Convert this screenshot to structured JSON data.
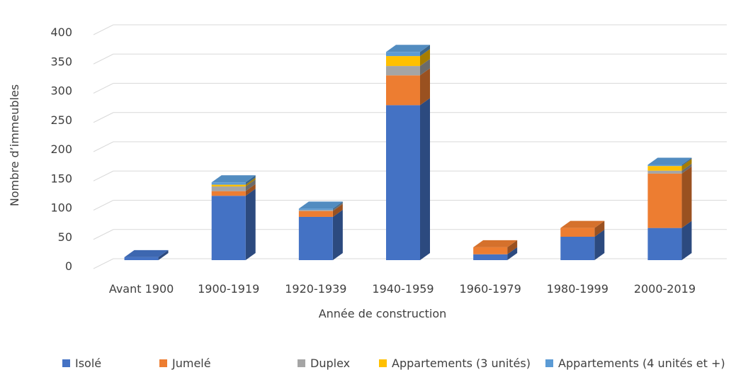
{
  "chart_data": {
    "type": "bar3d-stacked",
    "x_label": "Année de construction",
    "y_label": "Nombre d’immeubles",
    "categories": [
      "Avant 1900",
      "1900-1919",
      "1920-1939",
      "1940-1959",
      "1960-1979",
      "1980-1999",
      "2000-2019"
    ],
    "series": [
      {
        "name": "Isolé",
        "color": "#4472c4",
        "values": [
          5,
          110,
          74,
          265,
          10,
          40,
          55
        ]
      },
      {
        "name": "Jumelé",
        "color": "#ed7d31",
        "values": [
          0,
          8,
          10,
          51,
          12,
          15,
          93
        ]
      },
      {
        "name": "Duplex",
        "color": "#a5a5a5",
        "values": [
          0,
          8,
          2,
          16,
          0,
          0,
          5
        ]
      },
      {
        "name": "Appartements (3 unités)",
        "color": "#ffc000",
        "values": [
          0,
          3,
          0,
          17,
          0,
          0,
          8
        ]
      },
      {
        "name": "Appartements (4 unités et +)",
        "color": "#5b9bd5",
        "values": [
          0,
          4,
          2,
          7,
          0,
          0,
          2
        ]
      }
    ],
    "ylim": [
      0,
      400
    ],
    "yticks": [
      0,
      50,
      100,
      150,
      200,
      250,
      300,
      350,
      400
    ],
    "grid": true,
    "legend": "bottom"
  }
}
